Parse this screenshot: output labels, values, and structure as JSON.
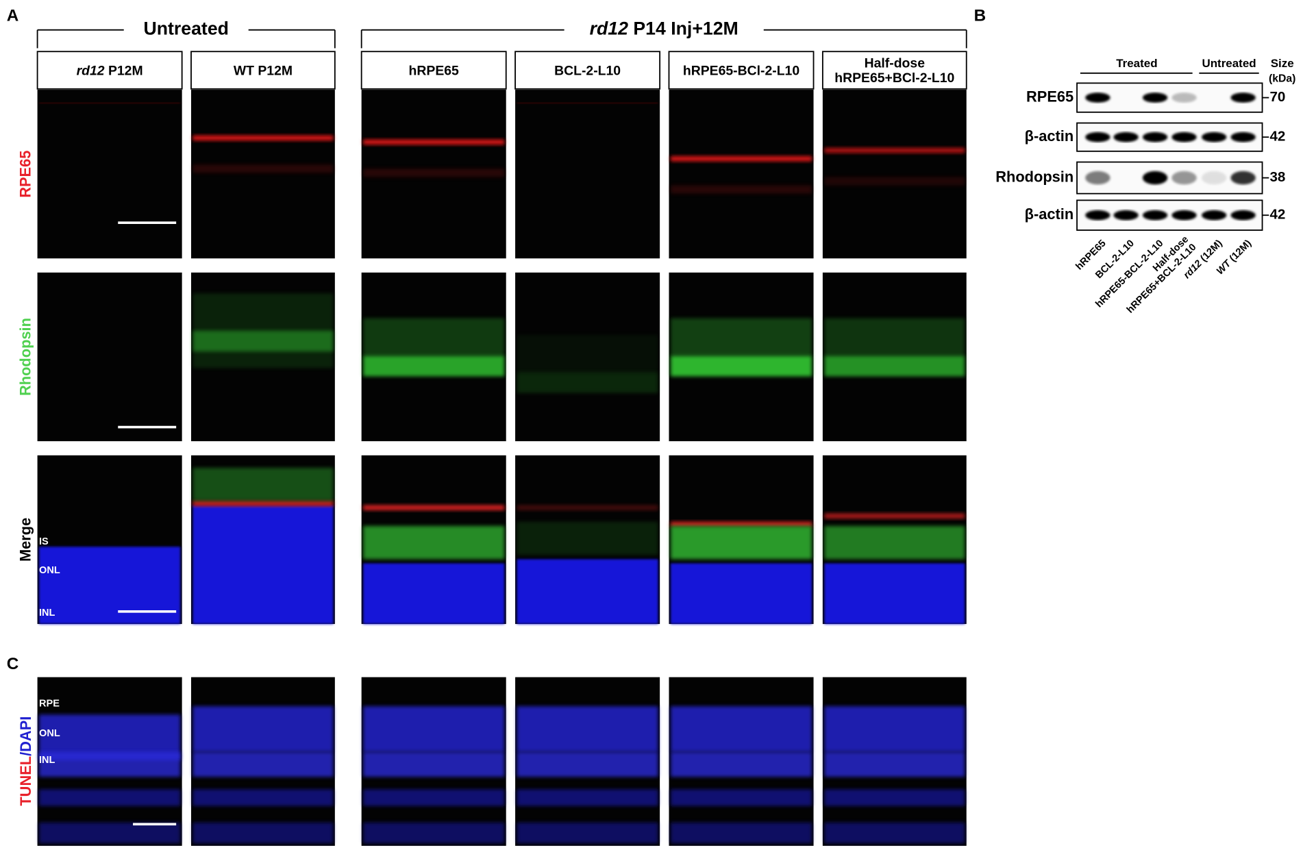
{
  "panel_a": {
    "label": "A",
    "group_untreated": "Untreated",
    "group_treated": {
      "italic": "rd12",
      "text": " P14 Inj+12M"
    },
    "columns": [
      {
        "italic": "rd12",
        "text": " P12M"
      },
      {
        "text": "WT P12M"
      },
      {
        "text": "hRPE65"
      },
      {
        "text": "BCL-2-L10"
      },
      {
        "text": "hRPE65-BCl-2-L10"
      },
      {
        "lines": [
          "Half-dose",
          "hRPE65+BCl-2-L10"
        ]
      }
    ],
    "rows": [
      "RPE65",
      "Rhodopsin",
      "Merge"
    ],
    "layer_labels": [
      "IS",
      "ONL",
      "INL"
    ]
  },
  "panel_b": {
    "label": "B",
    "group_treated": "Treated",
    "group_untreated": "Untreated",
    "size_header": [
      "Size",
      "(kDa)"
    ],
    "blots": [
      {
        "name": "RPE65",
        "marker": "70"
      },
      {
        "name": "β-actin",
        "marker": "42"
      },
      {
        "name": "Rhodopsin",
        "marker": "38"
      },
      {
        "name": "β-actin",
        "marker": "42"
      }
    ],
    "lanes": [
      {
        "text": "hRPE65"
      },
      {
        "text": "BCL-2-L10"
      },
      {
        "text": "hRPE65-BCL-2-L10"
      },
      {
        "lines": [
          "Half-dose",
          "hRPE65+BCL-2-L10"
        ]
      },
      {
        "italic": "rd12",
        "text": " (12M)"
      },
      {
        "italic": "WT",
        "text": " (12M)"
      }
    ]
  },
  "panel_c": {
    "label": "C",
    "row_label": {
      "tunel": "TUNEL",
      "dapi": "/DAPI"
    },
    "layer_labels": [
      "RPE",
      "ONL",
      "INL"
    ]
  }
}
